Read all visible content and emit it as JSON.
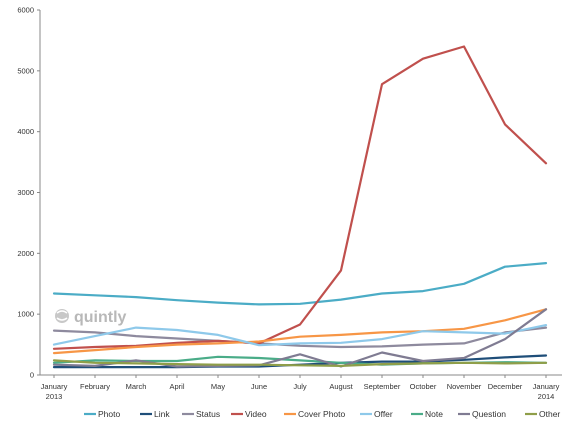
{
  "chart_data": {
    "type": "line",
    "categories": [
      "January\n2013",
      "February",
      "March",
      "April",
      "May",
      "June",
      "July",
      "August",
      "September",
      "October",
      "November",
      "December",
      "January\n2014"
    ],
    "ylim": [
      0,
      6000
    ],
    "yticks": [
      0,
      1000,
      2000,
      3000,
      4000,
      5000,
      6000
    ],
    "grid": false,
    "legend_placement": "bottom",
    "watermark": "quintly",
    "series": [
      {
        "name": "Photo",
        "color": "#4bacc6",
        "values": [
          1340,
          1310,
          1280,
          1230,
          1190,
          1160,
          1170,
          1240,
          1340,
          1380,
          1500,
          1780,
          1840
        ]
      },
      {
        "name": "Link",
        "color": "#1f4e79",
        "values": [
          130,
          130,
          130,
          130,
          140,
          140,
          170,
          200,
          220,
          220,
          250,
          290,
          320
        ]
      },
      {
        "name": "Status",
        "color": "#8e8a9e",
        "values": [
          730,
          700,
          640,
          600,
          560,
          520,
          480,
          460,
          470,
          500,
          520,
          700,
          780
        ]
      },
      {
        "name": "Video",
        "color": "#c0504d",
        "values": [
          430,
          460,
          480,
          530,
          560,
          520,
          830,
          1720,
          4780,
          5200,
          5400,
          4120,
          3480
        ]
      },
      {
        "name": "Cover Photo",
        "color": "#f79646",
        "values": [
          360,
          410,
          460,
          500,
          520,
          550,
          630,
          660,
          700,
          720,
          760,
          900,
          1080
        ]
      },
      {
        "name": "Offer",
        "color": "#8ec9ea",
        "values": [
          500,
          640,
          780,
          740,
          660,
          490,
          520,
          530,
          590,
          720,
          700,
          680,
          820
        ]
      },
      {
        "name": "Note",
        "color": "#4aac88",
        "values": [
          200,
          240,
          230,
          230,
          300,
          280,
          240,
          200,
          170,
          190,
          200,
          210,
          200
        ]
      },
      {
        "name": "Question",
        "color": "#7f7b92",
        "values": [
          170,
          150,
          240,
          140,
          150,
          160,
          340,
          140,
          370,
          230,
          280,
          590,
          1080
        ]
      },
      {
        "name": "Other",
        "color": "#8f9e49",
        "values": [
          240,
          200,
          190,
          180,
          170,
          170,
          160,
          150,
          180,
          190,
          200,
          190,
          200
        ]
      }
    ]
  }
}
